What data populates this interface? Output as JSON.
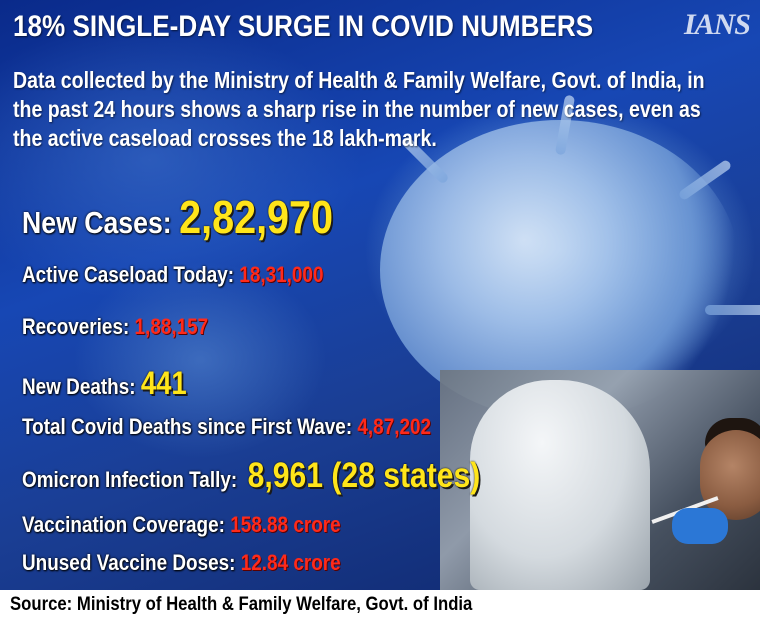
{
  "logo": "IANS",
  "title": "18% SINGLE-DAY SURGE IN COVID NUMBERS",
  "subtitle": "Data collected by the Ministry of Health & Family Welfare, Govt. of India, in the past 24 hours shows a sharp rise in the number of new cases, even as the active caseload crosses the 18 lakh-mark.",
  "stats": [
    {
      "label": "New Cases: ",
      "value": "2,82,970",
      "color": "#ffe51a"
    },
    {
      "label": "Active Caseload Today: ",
      "value": "18,31,000",
      "color": "#ff2a1a"
    },
    {
      "label": "Recoveries: ",
      "value": "1,88,157",
      "color": "#ff2a1a"
    },
    {
      "label": "New Deaths: ",
      "value": "441",
      "color": "#ffe51a"
    },
    {
      "label": "Total Covid Deaths since First Wave: ",
      "value": "4,87,202",
      "color": "#ff2a1a"
    },
    {
      "label": "Omicron Infection Tally:  ",
      "value": "8,961 (28 states)",
      "color": "#ffe51a"
    },
    {
      "label": "Vaccination Coverage: ",
      "value": "158.88 crore",
      "color": "#ff2a1a"
    },
    {
      "label": "Unused Vaccine Doses: ",
      "value": "12.84 crore",
      "color": "#ff2a1a"
    }
  ],
  "source": "Source: Ministry of Health & Family Welfare, Govt. of India"
}
